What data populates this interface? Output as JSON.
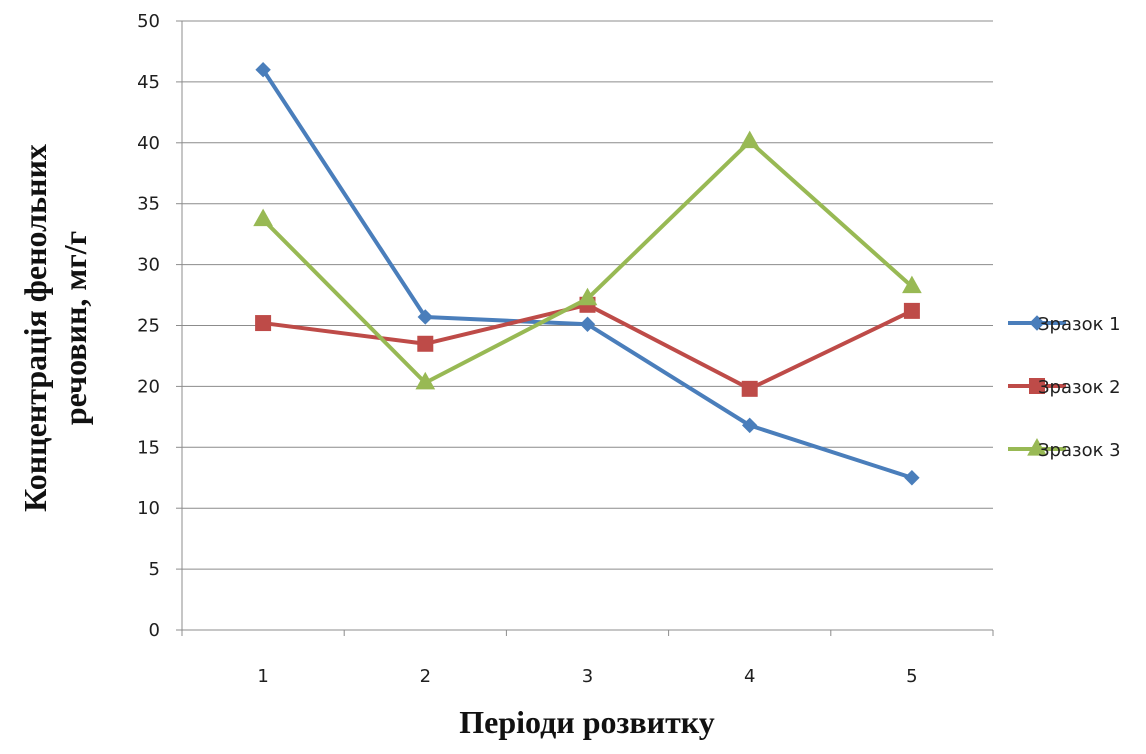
{
  "chart_data": {
    "type": "line",
    "title": "",
    "xlabel": "Періоди розвитку",
    "ylabel_lines": [
      "Концентрація фенольних",
      "речовин, мг/г"
    ],
    "categories": [
      "1",
      "2",
      "3",
      "4",
      "5"
    ],
    "yticks": [
      "0",
      "5",
      "10",
      "15",
      "20",
      "25",
      "30",
      "35",
      "40",
      "45",
      "50"
    ],
    "ylim": [
      0,
      50
    ],
    "grid": true,
    "legend_position": "right",
    "series": [
      {
        "name": "Зразок 1",
        "values": [
          46.0,
          25.7,
          25.1,
          16.8,
          12.5
        ],
        "color": "#4a7ebb",
        "marker": "diamond"
      },
      {
        "name": "Зразок 2",
        "values": [
          25.2,
          23.5,
          26.7,
          19.8,
          26.2
        ],
        "color": "#be4b48",
        "marker": "square"
      },
      {
        "name": "Зразок 3",
        "values": [
          33.7,
          20.3,
          27.2,
          40.1,
          28.2
        ],
        "color": "#98b954",
        "marker": "triangle"
      }
    ]
  }
}
